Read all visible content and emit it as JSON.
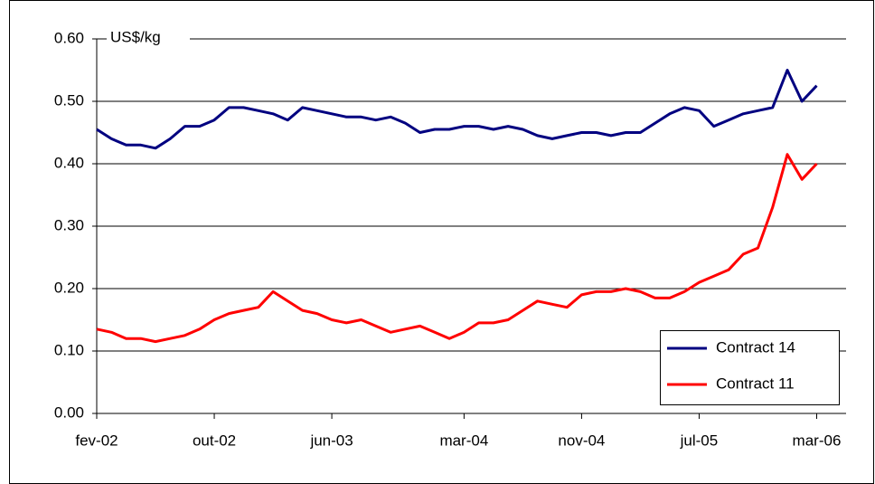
{
  "chart_data": {
    "type": "line",
    "y_label": "US$/kg",
    "x": [
      "2002-02",
      "2002-03",
      "2002-04",
      "2002-05",
      "2002-06",
      "2002-07",
      "2002-08",
      "2002-09",
      "2002-10",
      "2002-11",
      "2002-12",
      "2003-01",
      "2003-02",
      "2003-03",
      "2003-04",
      "2003-05",
      "2003-06",
      "2003-07",
      "2003-08",
      "2003-09",
      "2003-10",
      "2003-11",
      "2003-12",
      "2004-01",
      "2004-02",
      "2004-03",
      "2004-04",
      "2004-05",
      "2004-06",
      "2004-07",
      "2004-08",
      "2004-09",
      "2004-10",
      "2004-11",
      "2004-12",
      "2005-01",
      "2005-02",
      "2005-03",
      "2005-04",
      "2005-05",
      "2005-06",
      "2005-07",
      "2005-08",
      "2005-09",
      "2005-10",
      "2005-11",
      "2005-12",
      "2006-01",
      "2006-02",
      "2006-03"
    ],
    "series": [
      {
        "name": "Contract 14",
        "color": "#000080",
        "values": [
          0.455,
          0.44,
          0.43,
          0.43,
          0.425,
          0.44,
          0.46,
          0.46,
          0.47,
          0.49,
          0.49,
          0.485,
          0.48,
          0.47,
          0.49,
          0.485,
          0.48,
          0.475,
          0.475,
          0.47,
          0.475,
          0.465,
          0.45,
          0.455,
          0.455,
          0.46,
          0.46,
          0.455,
          0.46,
          0.455,
          0.445,
          0.44,
          0.445,
          0.45,
          0.45,
          0.445,
          0.45,
          0.45,
          0.465,
          0.48,
          0.49,
          0.485,
          0.46,
          0.47,
          0.48,
          0.485,
          0.49,
          0.55,
          0.5,
          0.525
        ]
      },
      {
        "name": "Contract 11",
        "color": "#ff0000",
        "values": [
          0.135,
          0.13,
          0.12,
          0.12,
          0.115,
          0.12,
          0.125,
          0.135,
          0.15,
          0.16,
          0.165,
          0.17,
          0.195,
          0.18,
          0.165,
          0.16,
          0.15,
          0.145,
          0.15,
          0.14,
          0.13,
          0.135,
          0.14,
          0.13,
          0.12,
          0.13,
          0.145,
          0.145,
          0.15,
          0.165,
          0.18,
          0.175,
          0.17,
          0.19,
          0.195,
          0.195,
          0.2,
          0.195,
          0.185,
          0.185,
          0.195,
          0.21,
          0.22,
          0.23,
          0.255,
          0.265,
          0.33,
          0.415,
          0.375,
          0.4
        ]
      }
    ],
    "xlim": [
      "2002-02",
      "2006-05"
    ],
    "xticks": [
      {
        "value": "2002-02",
        "label": "fev-02"
      },
      {
        "value": "2002-10",
        "label": "out-02"
      },
      {
        "value": "2003-06",
        "label": "jun-03"
      },
      {
        "value": "2004-03",
        "label": "mar-04"
      },
      {
        "value": "2004-11",
        "label": "nov-04"
      },
      {
        "value": "2005-07",
        "label": "jul-05"
      },
      {
        "value": "2006-03",
        "label": "mar-06"
      }
    ],
    "ylim": [
      0,
      0.6
    ],
    "yticks": [
      {
        "value": 0,
        "label": "0.00"
      },
      {
        "value": 0.1,
        "label": "0.10"
      },
      {
        "value": 0.2,
        "label": "0.20"
      },
      {
        "value": 0.3,
        "label": "0.30"
      },
      {
        "value": 0.4,
        "label": "0.40"
      },
      {
        "value": 0.5,
        "label": "0.50"
      },
      {
        "value": 0.6,
        "label": "0.60"
      }
    ],
    "grid": true,
    "legend": "lower right"
  }
}
